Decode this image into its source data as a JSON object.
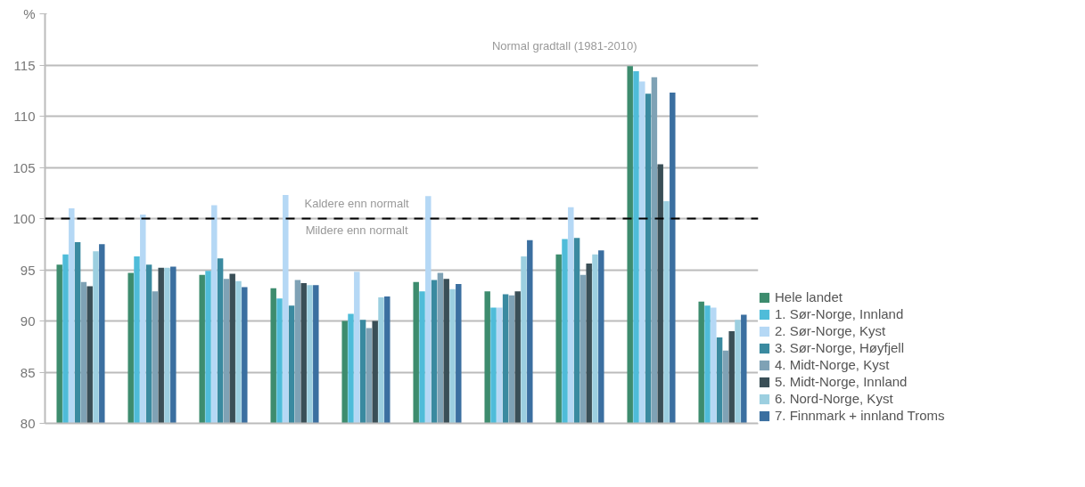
{
  "chart_data": {
    "type": "bar",
    "categories": [
      null,
      null,
      null,
      null,
      null,
      null,
      null,
      null,
      null,
      null
    ],
    "series": [
      {
        "name": "Hele landet",
        "color": "#3d8c6e",
        "values": [
          95.5,
          94.7,
          94.5,
          93.2,
          90.0,
          93.8,
          92.9,
          96.5,
          114.9,
          91.9
        ]
      },
      {
        "name": "1. Sør-Norge, Innland",
        "color": "#4fbcd9",
        "values": [
          96.5,
          96.3,
          94.9,
          92.2,
          90.7,
          92.9,
          91.3,
          98.0,
          114.4,
          91.5
        ]
      },
      {
        "name": "2. Sør-Norge, Kyst",
        "color": "#b5d8f5",
        "values": [
          101.0,
          100.4,
          101.3,
          102.3,
          94.8,
          102.2,
          91.3,
          101.1,
          113.4,
          91.3
        ]
      },
      {
        "name": "3. Sør-Norge, Høyfjell",
        "color": "#3a8aa0",
        "values": [
          97.7,
          95.5,
          96.1,
          91.5,
          90.1,
          94.0,
          92.6,
          98.1,
          112.2,
          88.4
        ]
      },
      {
        "name": "4. Midt-Norge, Kyst",
        "color": "#7fa2b5",
        "values": [
          93.8,
          92.9,
          94.1,
          94.0,
          89.3,
          94.7,
          92.5,
          94.5,
          113.8,
          87.1
        ]
      },
      {
        "name": "5. Midt-Norge, Innland",
        "color": "#3a4f57",
        "values": [
          93.4,
          95.2,
          94.6,
          93.7,
          90.0,
          94.1,
          92.9,
          95.6,
          105.3,
          89.0
        ]
      },
      {
        "name": "6. Nord-Norge, Kyst",
        "color": "#9ccfe0",
        "values": [
          96.8,
          95.2,
          93.9,
          93.5,
          92.3,
          93.1,
          96.3,
          96.5,
          101.7,
          90.1
        ]
      },
      {
        "name": "7. Finnmark + innland Troms",
        "color": "#3b6fa0",
        "values": [
          97.5,
          95.3,
          93.3,
          93.5,
          92.4,
          93.6,
          97.9,
          96.9,
          112.3,
          90.6
        ]
      }
    ],
    "ylim": [
      80,
      120
    ],
    "yticks": [
      80,
      85,
      90,
      95,
      100,
      105,
      110,
      115,
      {
        "value": 120,
        "label": "%"
      }
    ],
    "grid": "y",
    "legend": "bottom right",
    "tick_labels": "y",
    "ref_lines": [
      {
        "axis": "y",
        "value": 100,
        "color": "#000000",
        "line_style": "dashed"
      }
    ],
    "annotations": [
      "Normal gradtall (1981-2010)",
      "Kaldere enn normalt",
      "Mildere enn normalt"
    ]
  }
}
